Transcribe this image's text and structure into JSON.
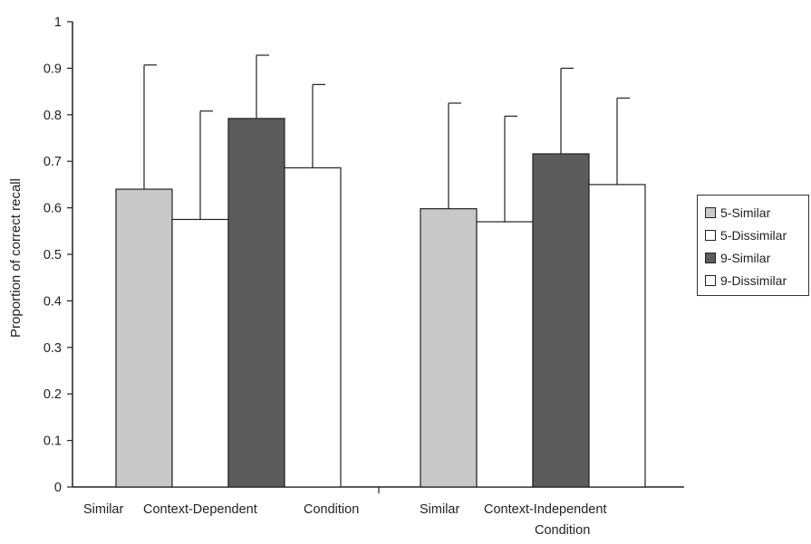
{
  "chart_data": {
    "type": "bar",
    "ylabel": "Proportion of correct recall",
    "ylim": [
      0,
      1
    ],
    "yticks": [
      "0",
      "0.1",
      "0.2",
      "0.3",
      "0.4",
      "0.5",
      "0.6",
      "0.7",
      "0.8",
      "0.9",
      "1"
    ],
    "x_labels": {
      "left_similar": "Similar",
      "left_condition": "Context-Dependent",
      "left_condition_word": "Condition",
      "right_similar": "Similar",
      "right_condition": "Context-Independent",
      "right_condition_word": "Condition"
    },
    "categories": [
      "Context-Dependent Condition",
      "Context-Independent Condition"
    ],
    "series": [
      {
        "name": "5-Similar",
        "color": "#c8c8c8",
        "values": [
          0.64,
          0.598
        ],
        "error_upper": [
          0.907,
          0.825
        ]
      },
      {
        "name": "5-Dissimilar",
        "color": "#ffffff",
        "values": [
          0.575,
          0.57
        ],
        "error_upper": [
          0.808,
          0.797
        ]
      },
      {
        "name": "9-Similar",
        "color": "#5c5c5c",
        "values": [
          0.792,
          0.716
        ],
        "error_upper": [
          0.928,
          0.9
        ]
      },
      {
        "name": "9-Dissimilar",
        "color": "#ffffff",
        "values": [
          0.686,
          0.65
        ],
        "error_upper": [
          0.865,
          0.836
        ]
      }
    ],
    "legend_position": "right",
    "grid": false
  }
}
